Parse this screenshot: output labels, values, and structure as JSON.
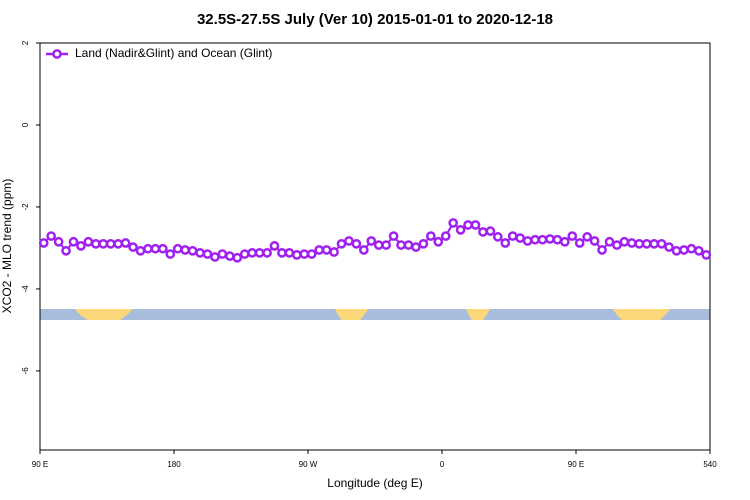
{
  "chart_data": {
    "type": "line",
    "title": "32.5S-27.5S July (Ver 10)   2015-01-01 to 2020-12-18",
    "xlabel": "Longitude (deg E)",
    "ylabel": "XCO2 - MLO trend (ppm)",
    "xlim": [
      90,
      540
    ],
    "ylim": [
      -7.93,
      2.0
    ],
    "xticks": [
      {
        "value": 90,
        "label": "90 E"
      },
      180,
      {
        "value": 270,
        "label": "90 W"
      },
      {
        "value": 360,
        "label": "0"
      },
      {
        "value": 450,
        "label": "90 E"
      },
      540
    ],
    "yticks": [
      2,
      0,
      -2,
      -4,
      -6
    ],
    "legend": "top-left",
    "x": [
      92.5,
      97.5,
      102.5,
      107.5,
      112.5,
      117.5,
      122.5,
      127.5,
      132.5,
      137.5,
      142.5,
      147.5,
      152.5,
      157.5,
      162.5,
      167.5,
      172.5,
      177.5,
      182.5,
      187.5,
      192.5,
      197.5,
      202.5,
      207.5,
      212.5,
      217.5,
      222.5,
      227.5,
      232.5,
      237.5,
      242.5,
      247.5,
      252.5,
      257.5,
      262.5,
      267.5,
      272.5,
      277.5,
      282.5,
      287.5,
      292.5,
      297.5,
      302.5,
      307.5,
      312.5,
      317.5,
      322.5,
      327.5,
      332.5,
      337.5,
      342.5,
      347.5,
      352.5,
      357.5,
      362.5,
      367.5,
      372.5,
      377.5,
      382.5,
      387.5,
      392.5,
      397.5,
      402.5,
      407.5,
      412.5,
      417.5,
      422.5,
      427.5,
      432.5,
      437.5,
      442.5,
      447.5,
      452.5,
      457.5,
      462.5,
      467.5,
      472.5,
      477.5,
      482.5,
      487.5,
      492.5,
      497.5,
      502.5,
      507.5,
      512.5,
      517.5,
      522.5,
      527.5,
      532.5,
      537.5
    ],
    "series": [
      {
        "name": "Land (Nadir&Glint) and Ocean (Glint)",
        "color": "#a020f0",
        "values": [
          -2.88,
          -2.71,
          -2.85,
          -3.07,
          -2.85,
          -2.95,
          -2.85,
          -2.9,
          -2.9,
          -2.9,
          -2.9,
          -2.88,
          -2.98,
          -3.07,
          -3.02,
          -3.02,
          -3.02,
          -3.15,
          -3.02,
          -3.05,
          -3.07,
          -3.12,
          -3.15,
          -3.22,
          -3.15,
          -3.2,
          -3.24,
          -3.15,
          -3.12,
          -3.12,
          -3.12,
          -2.95,
          -3.12,
          -3.12,
          -3.17,
          -3.15,
          -3.15,
          -3.05,
          -3.05,
          -3.1,
          -2.9,
          -2.83,
          -2.9,
          -3.05,
          -2.83,
          -2.93,
          -2.93,
          -2.71,
          -2.93,
          -2.93,
          -2.98,
          -2.9,
          -2.71,
          -2.85,
          -2.71,
          -2.39,
          -2.56,
          -2.44,
          -2.44,
          -2.61,
          -2.59,
          -2.73,
          -2.88,
          -2.71,
          -2.76,
          -2.83,
          -2.8,
          -2.8,
          -2.78,
          -2.8,
          -2.85,
          -2.71,
          -2.88,
          -2.73,
          -2.83,
          -3.05,
          -2.85,
          -2.93,
          -2.85,
          -2.88,
          -2.9,
          -2.9,
          -2.9,
          -2.9,
          -2.98,
          -3.07,
          -3.05,
          -3.02,
          -3.07,
          -3.17
        ]
      }
    ]
  }
}
